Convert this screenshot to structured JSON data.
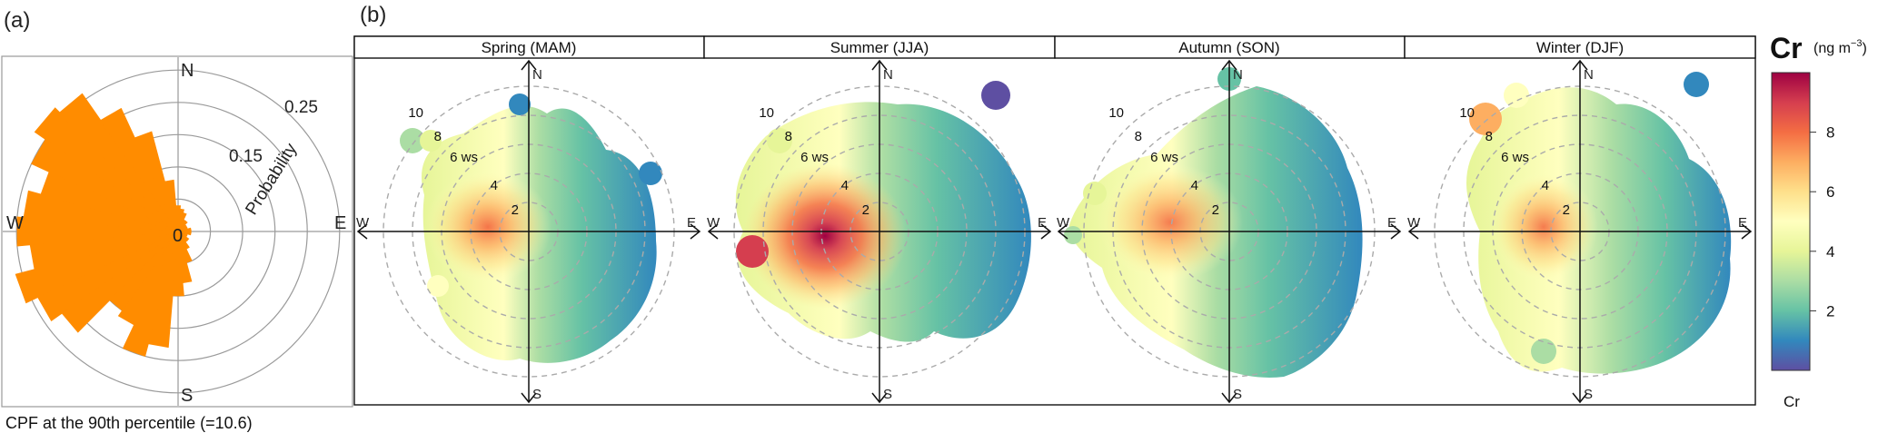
{
  "panel_labels": {
    "a": "(a)",
    "b": "(b)"
  },
  "cpf": {
    "rose_color": "#ff8c00",
    "compass": {
      "n": "N",
      "e": "E",
      "s": "S",
      "w": "W"
    },
    "center_label": "0",
    "ring_labels": [
      "0.15",
      "0.25"
    ],
    "axis_label": "Probability",
    "footer": "CPF at the 90th percentile (=10.6)"
  },
  "seasons": [
    {
      "title": "Spring (MAM)"
    },
    {
      "title": "Summer (JJA)"
    },
    {
      "title": "Autumn (SON)"
    },
    {
      "title": "Winter (DJF)"
    }
  ],
  "polar_labels": {
    "n": "N",
    "e": "E",
    "s": "S",
    "w": "W",
    "ws_suffix": " ws",
    "rings": [
      "2",
      "4",
      "6",
      "8",
      "10"
    ]
  },
  "colorbar": {
    "title": "Cr",
    "unit": "(ng m",
    "unit_sup": "−3",
    "unit_close": ")",
    "ticks": [
      "2",
      "4",
      "6",
      "8"
    ],
    "footer": "Cr",
    "colors": [
      "#5e4fa2",
      "#3288bd",
      "#66c2a5",
      "#abdda4",
      "#e6f598",
      "#ffffbf",
      "#fee08b",
      "#fdae61",
      "#f46d43",
      "#d53e4f",
      "#9e0142"
    ]
  },
  "chart_data": [
    {
      "type": "polar-bar",
      "title": "",
      "radial_axis_label": "Probability",
      "radial_ticks": [
        0.05,
        0.1,
        0.15,
        0.2,
        0.25
      ],
      "radial_tick_labels_shown": [
        0.15,
        0.25
      ],
      "rlim": [
        0,
        0.25
      ],
      "theta_labels": [
        "N",
        "E",
        "S",
        "W"
      ],
      "note": "CPF at the 90th percentile (=10.6)",
      "direction_deg": [
        0,
        10,
        20,
        30,
        40,
        50,
        60,
        70,
        80,
        90,
        100,
        110,
        120,
        130,
        140,
        150,
        160,
        170,
        180,
        190,
        200,
        210,
        220,
        230,
        240,
        250,
        260,
        270,
        280,
        290,
        300,
        310,
        320,
        330,
        340,
        350
      ],
      "values": [
        0.04,
        0.035,
        0.03,
        0.02,
        0.02,
        0.015,
        0.015,
        0.015,
        0.02,
        0.02,
        0.02,
        0.015,
        0.015,
        0.02,
        0.02,
        0.03,
        0.05,
        0.08,
        0.1,
        0.18,
        0.2,
        0.16,
        0.15,
        0.22,
        0.24,
        0.26,
        0.23,
        0.25,
        0.24,
        0.22,
        0.25,
        0.27,
        0.26,
        0.21,
        0.16,
        0.08
      ]
    },
    {
      "type": "polar-heatmap",
      "title": "Spring (MAM)",
      "variable": "Cr",
      "unit": "ng m-3",
      "radial_axis": "ws",
      "radial_ticks": [
        2,
        4,
        6,
        8,
        10
      ],
      "color_range": [
        0,
        10
      ],
      "peak": {
        "direction_deg": 255,
        "ws": 3.5,
        "value": 6.5
      }
    },
    {
      "type": "polar-heatmap",
      "title": "Summer (JJA)",
      "variable": "Cr",
      "unit": "ng m-3",
      "radial_axis": "ws",
      "radial_ticks": [
        2,
        4,
        6,
        8,
        10
      ],
      "color_range": [
        0,
        10
      ],
      "peak": {
        "direction_deg": 260,
        "ws": 4.2,
        "value": 10
      }
    },
    {
      "type": "polar-heatmap",
      "title": "Autumn (SON)",
      "variable": "Cr",
      "unit": "ng m-3",
      "radial_axis": "ws",
      "radial_ticks": [
        2,
        4,
        6,
        8,
        10
      ],
      "color_range": [
        0,
        10
      ],
      "peak": {
        "direction_deg": 270,
        "ws": 4.0,
        "value": 6.5
      }
    },
    {
      "type": "polar-heatmap",
      "title": "Winter (DJF)",
      "variable": "Cr",
      "unit": "ng m-3",
      "radial_axis": "ws",
      "radial_ticks": [
        2,
        4,
        6,
        8,
        10
      ],
      "color_range": [
        0,
        10
      ],
      "peak": {
        "direction_deg": 280,
        "ws": 2.0,
        "value": 6.5
      }
    }
  ]
}
